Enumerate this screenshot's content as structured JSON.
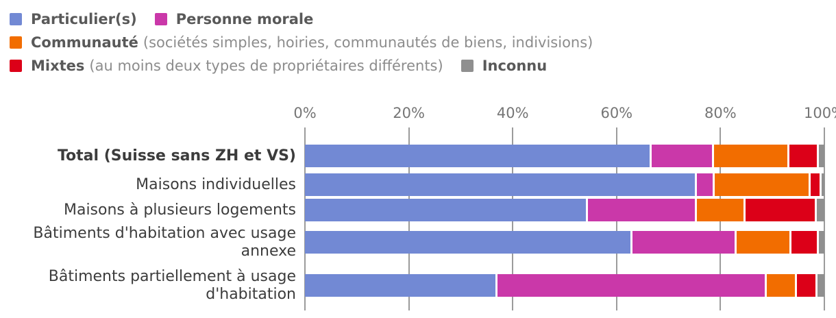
{
  "legend": {
    "items": [
      {
        "label": "Particulier(s)",
        "note": "",
        "color": "#7289d4"
      },
      {
        "label": "Personne morale",
        "note": "",
        "color": "#ca38a9"
      },
      {
        "label": "Communauté",
        "note": "(sociétés simples, hoiries, communautés de biens, indivisions)",
        "color": "#f26d00"
      },
      {
        "label": "Mixtes",
        "note": "(au moins deux types de propriétaires différents)",
        "color": "#dc0018"
      },
      {
        "label": "Inconnu",
        "note": "",
        "color": "#8f8f8f"
      }
    ]
  },
  "chart_data": {
    "type": "bar",
    "orientation": "horizontal",
    "stacked": true,
    "unit": "percent",
    "xlim": [
      0,
      100
    ],
    "x_ticks": [
      "0%",
      "20%",
      "40%",
      "60%",
      "80%",
      "100%"
    ],
    "grid": true,
    "legend_position": "top-left",
    "categories": [
      {
        "label": "Total (Suisse sans ZH et VS)",
        "bold": true
      },
      {
        "label": "Maisons individuelles",
        "bold": false
      },
      {
        "label": "Maisons à plusieurs logements",
        "bold": false
      },
      {
        "label": "Bâtiments d'habitation avec usage annexe",
        "bold": false
      },
      {
        "label": "Bâtiments partiellement à usage d'habitation",
        "bold": false
      }
    ],
    "series": [
      {
        "name": "Particulier(s)",
        "color": "#7289d4",
        "values": [
          66.8,
          75.5,
          54.5,
          63.0,
          37.1
        ]
      },
      {
        "name": "Personne morale",
        "color": "#ca38a9",
        "values": [
          12.0,
          3.4,
          20.9,
          20.1,
          51.8
        ]
      },
      {
        "name": "Communauté",
        "color": "#f26d00",
        "values": [
          14.5,
          18.5,
          9.4,
          10.6,
          5.8
        ]
      },
      {
        "name": "Mixtes",
        "color": "#dc0018",
        "values": [
          5.6,
          2.1,
          13.8,
          5.3,
          4.0
        ]
      },
      {
        "name": "Inconnu",
        "color": "#8f8f8f",
        "values": [
          1.1,
          0.5,
          1.4,
          1.0,
          1.3
        ]
      }
    ]
  },
  "colors": {
    "grid": "#9b9b9b",
    "axis_label": "#757575",
    "category_label": "#3c3c3c",
    "legend_label": "#595959",
    "legend_note": "#8c8c8c"
  }
}
